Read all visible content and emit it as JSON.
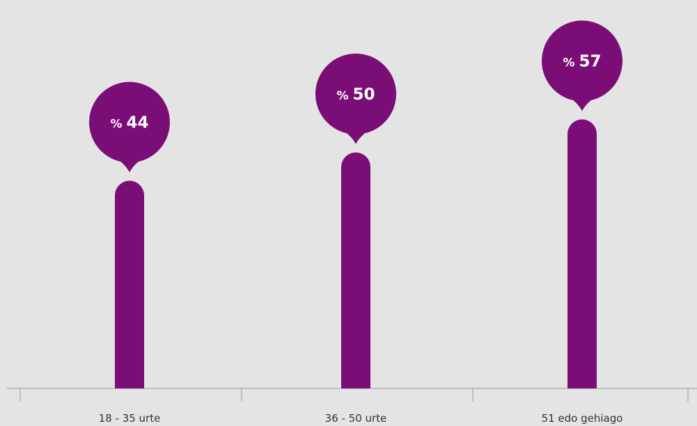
{
  "chart_data": {
    "type": "bar",
    "categories": [
      "18 - 35 urte",
      "36 - 50 urte",
      "51 edo gehiago"
    ],
    "values": [
      44,
      50,
      57
    ],
    "value_prefix": "%",
    "ylim": [
      0,
      80
    ],
    "grid": false,
    "legend": "none",
    "title": "",
    "xlabel": "",
    "ylabel": ""
  },
  "colors": {
    "background": "#e4e4e4",
    "bar": "#7a0e76",
    "bubble": "#7a0e76",
    "bubble_text": "#ffffff",
    "axis": "#9a9a9a",
    "label": "#333333"
  }
}
